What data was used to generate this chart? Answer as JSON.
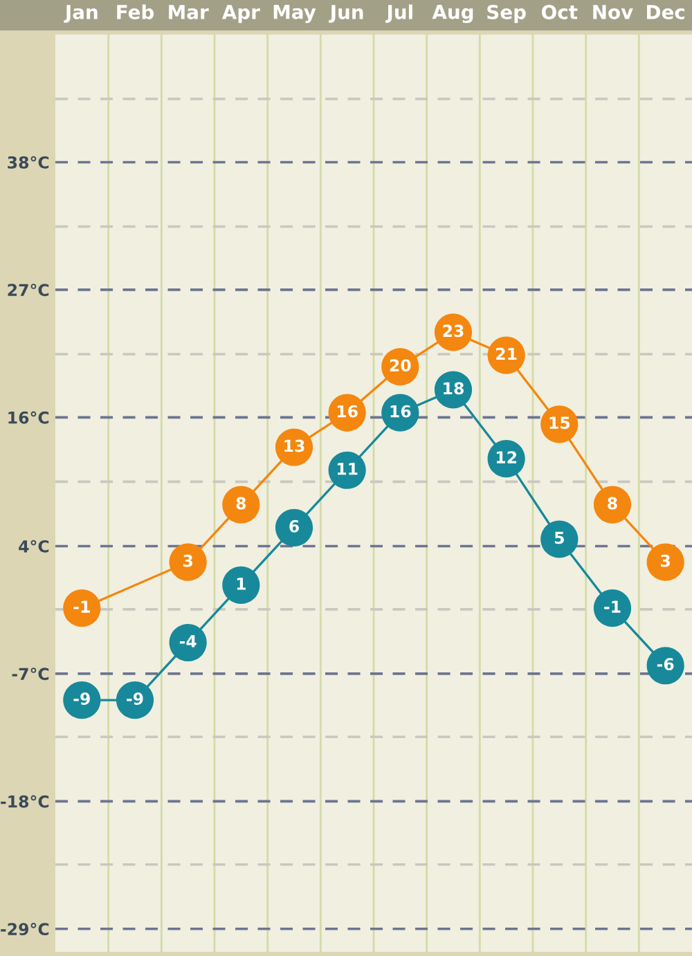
{
  "chart_data": {
    "type": "line",
    "categories": [
      "Jan",
      "Feb",
      "Mar",
      "Apr",
      "May",
      "Jun",
      "Jul",
      "Aug",
      "Sep",
      "Oct",
      "Nov",
      "Dec"
    ],
    "series": [
      {
        "color": "#f4870f",
        "values": [
          -1,
          null,
          3,
          8,
          13,
          16,
          20,
          23,
          21,
          15,
          8,
          3
        ]
      },
      {
        "color": "#17899a",
        "values": [
          -9,
          -9,
          -4,
          1,
          6,
          11,
          16,
          18,
          12,
          5,
          -1,
          -6
        ]
      }
    ],
    "ylim": [
      -30.9,
      48.9
    ],
    "yticks": [
      {
        "value": -28.9,
        "label": "-29°C"
      },
      {
        "value": -23.3,
        "label": null
      },
      {
        "value": -17.8,
        "label": "-18°C"
      },
      {
        "value": -12.2,
        "label": null
      },
      {
        "value": -6.7,
        "label": "-7°C"
      },
      {
        "value": -1.1,
        "label": null
      },
      {
        "value": 4.4,
        "label": "4°C"
      },
      {
        "value": 10,
        "label": null
      },
      {
        "value": 15.6,
        "label": "16°C"
      },
      {
        "value": 21.1,
        "label": null
      },
      {
        "value": 26.7,
        "label": "27°C"
      },
      {
        "value": 32.2,
        "label": null
      },
      {
        "value": 37.8,
        "label": "38°C"
      },
      {
        "value": 43.3,
        "label": null
      }
    ],
    "grid": true,
    "marker": "circle",
    "line_style": "solid",
    "data_labels": true
  }
}
